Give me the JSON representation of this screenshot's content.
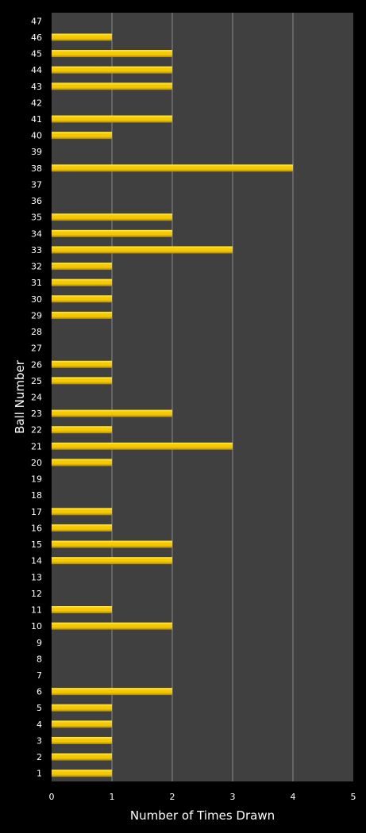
{
  "chart_data": {
    "type": "bar",
    "orientation": "horizontal",
    "title": "",
    "xlabel": "Number of Times Drawn",
    "ylabel": "Ball Number",
    "xlim": [
      0,
      5
    ],
    "x_ticks": [
      "0",
      "1",
      "2",
      "3",
      "4",
      "5"
    ],
    "grid": "vertical",
    "legend": "none",
    "categories": [
      "1",
      "2",
      "3",
      "4",
      "5",
      "6",
      "7",
      "8",
      "9",
      "10",
      "11",
      "12",
      "13",
      "14",
      "15",
      "16",
      "17",
      "18",
      "19",
      "20",
      "21",
      "22",
      "23",
      "24",
      "25",
      "26",
      "27",
      "28",
      "29",
      "30",
      "31",
      "32",
      "33",
      "34",
      "35",
      "36",
      "37",
      "38",
      "39",
      "40",
      "41",
      "42",
      "43",
      "44",
      "45",
      "46",
      "47"
    ],
    "values": [
      1,
      1,
      1,
      1,
      1,
      2,
      0,
      0,
      0,
      2,
      1,
      0,
      0,
      2,
      2,
      1,
      1,
      0,
      0,
      1,
      3,
      1,
      2,
      0,
      1,
      1,
      0,
      0,
      1,
      1,
      1,
      1,
      3,
      2,
      2,
      0,
      0,
      4,
      0,
      1,
      2,
      0,
      2,
      2,
      2,
      1,
      0
    ],
    "colors": {
      "background": "#000000",
      "plot_area": "#404040",
      "bar": "#f5c800",
      "bar_highlight": "#ffe94d",
      "bar_shadow": "#b08a00",
      "gridline": "#8a8a8a",
      "text": "#ffffff"
    }
  }
}
